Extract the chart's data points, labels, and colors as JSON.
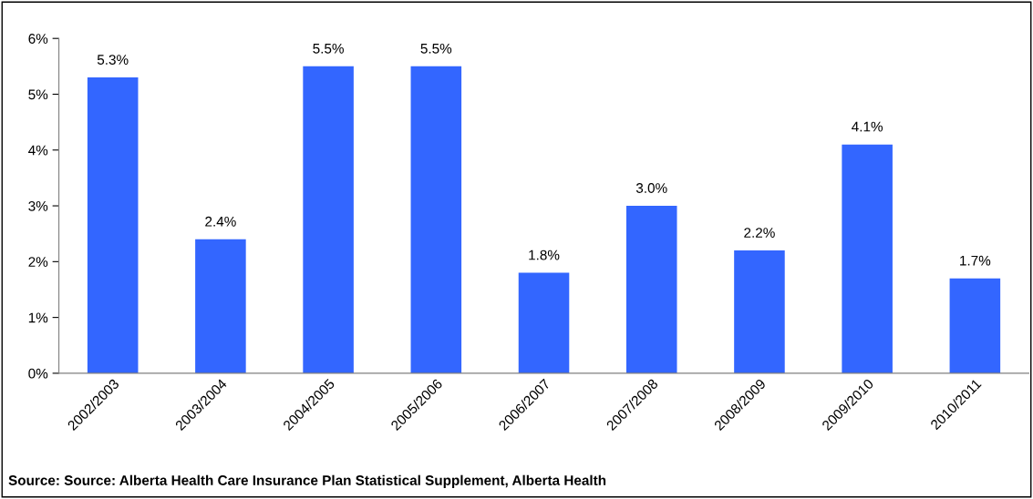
{
  "chart_data": {
    "type": "bar",
    "categories": [
      "2002/2003",
      "2003/2004",
      "2004/2005",
      "2005/2006",
      "2006/2007",
      "2007/2008",
      "2008/2009",
      "2009/2010",
      "2010/2011"
    ],
    "values": [
      5.3,
      2.4,
      5.5,
      5.5,
      1.8,
      3.0,
      2.2,
      4.1,
      1.7
    ],
    "value_labels": [
      "5.3%",
      "2.4%",
      "5.5%",
      "5.5%",
      "1.8%",
      "3.0%",
      "2.2%",
      "4.1%",
      "1.7%"
    ],
    "color": "#3366ff",
    "ylim": [
      0,
      6
    ],
    "yticks": [
      {
        "value": 0,
        "label": "0%"
      },
      {
        "value": 1,
        "label": "1%"
      },
      {
        "value": 2,
        "label": "2%"
      },
      {
        "value": 3,
        "label": "3%"
      },
      {
        "value": 4,
        "label": "4%"
      },
      {
        "value": 5,
        "label": "5%"
      },
      {
        "value": 6,
        "label": "6%"
      }
    ],
    "grid": false,
    "annotations": [
      "Source: Source: Alberta Health Care Insurance Plan Statistical Supplement, Alberta Health"
    ]
  }
}
